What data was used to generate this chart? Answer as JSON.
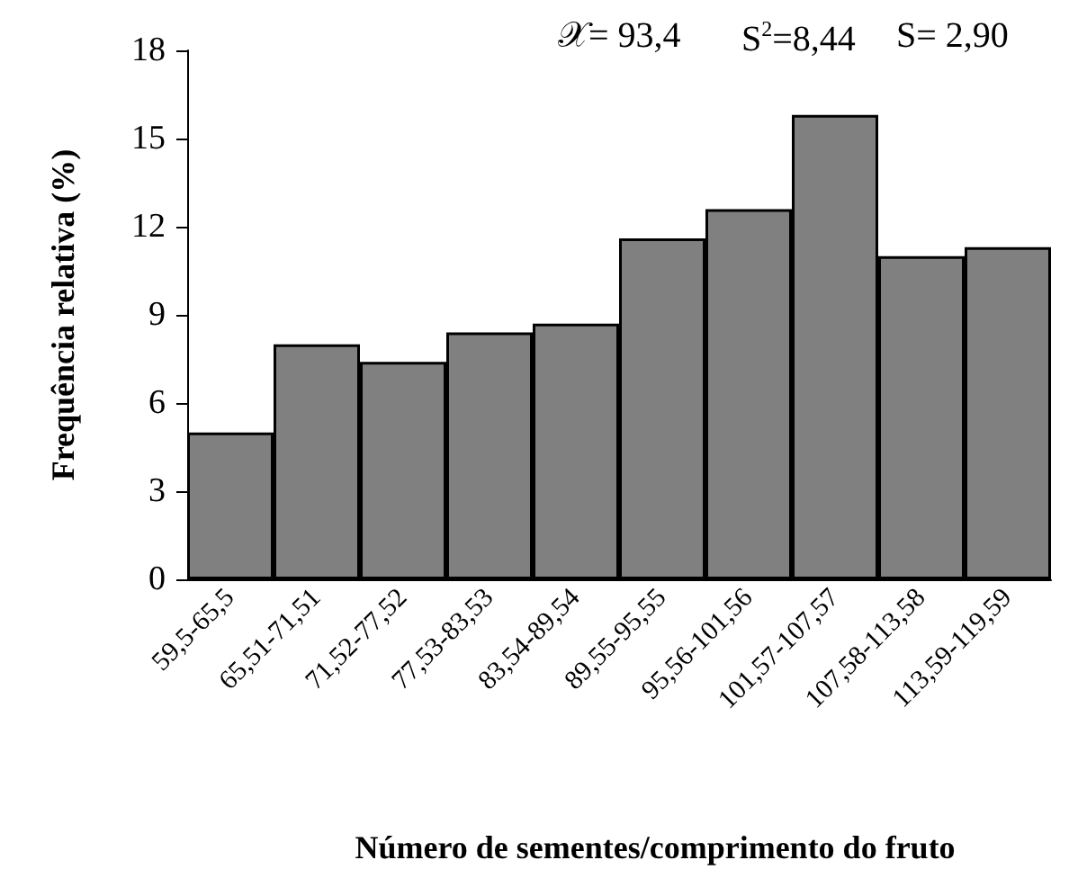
{
  "chart_data": {
    "type": "bar",
    "xlabel": "Número de sementes/comprimento do fruto",
    "ylabel": "Frequência relativa (%)",
    "categories": [
      "59,5-65,5",
      "65,51-71,51",
      "71,52-77,52",
      "77,53-83,53",
      "83,54-89,54",
      "89,55-95,55",
      "95,56-101,56",
      "101,57-107,57",
      "107,58-113,58",
      "113,59-119,59"
    ],
    "values": [
      5.0,
      8.0,
      7.4,
      8.4,
      8.7,
      11.6,
      12.6,
      15.8,
      11.0,
      11.3
    ],
    "color": "#808080",
    "ylim": [
      0,
      18
    ],
    "yticks": [
      0,
      3,
      6,
      9,
      12,
      15,
      18
    ],
    "grid": false,
    "annotations": [
      "𝒳= 93,4",
      "S$^{2}$=8,44",
      "S= 2,90"
    ]
  }
}
